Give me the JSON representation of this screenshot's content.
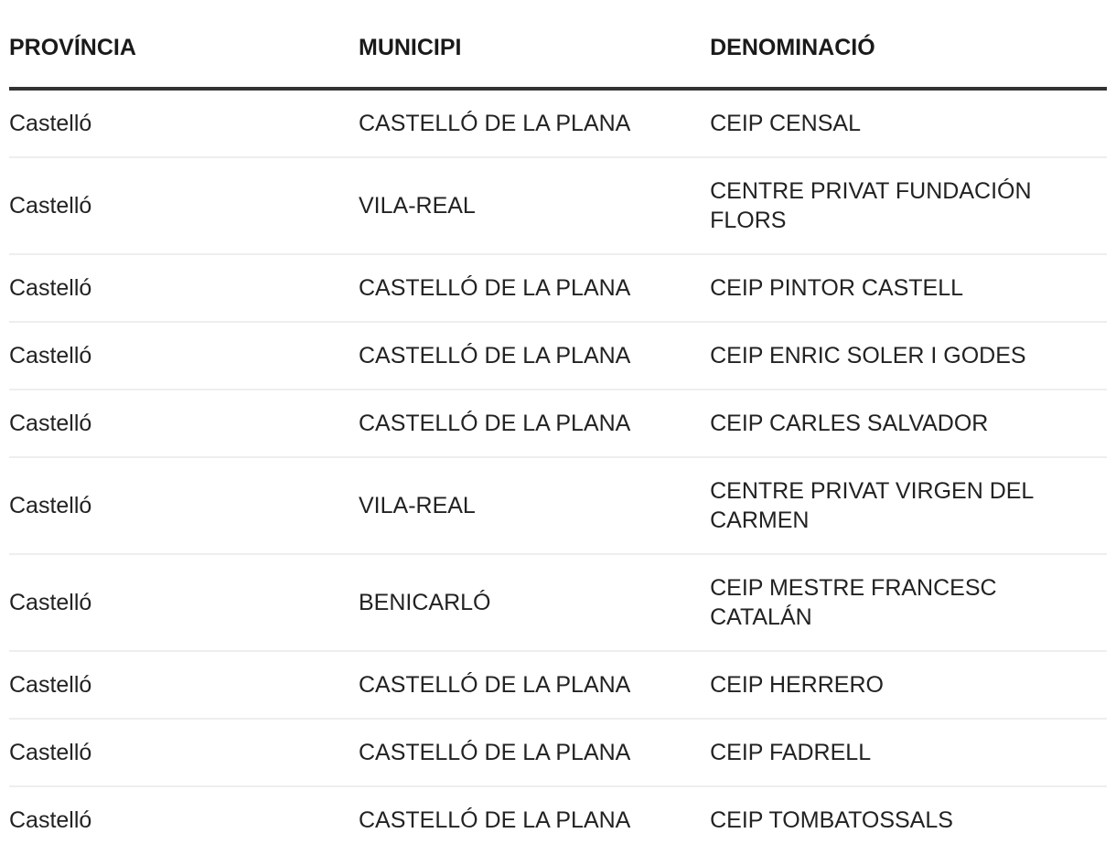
{
  "table": {
    "headers": [
      "PROVÍNCIA",
      "MUNICIPI",
      "DENOMINACIÓ"
    ],
    "rows": [
      [
        "Castelló",
        "CASTELLÓ DE LA PLANA",
        "CEIP CENSAL"
      ],
      [
        "Castelló",
        "VILA-REAL",
        "CENTRE PRIVAT FUNDACIÓN FLORS"
      ],
      [
        "Castelló",
        "CASTELLÓ DE LA PLANA",
        "CEIP PINTOR CASTELL"
      ],
      [
        "Castelló",
        "CASTELLÓ DE LA PLANA",
        "CEIP ENRIC SOLER I GODES"
      ],
      [
        "Castelló",
        "CASTELLÓ DE LA PLANA",
        "CEIP CARLES SALVADOR"
      ],
      [
        "Castelló",
        "VILA-REAL",
        "CENTRE PRIVAT VIRGEN DEL CARMEN"
      ],
      [
        "Castelló",
        "BENICARLÓ",
        "CEIP MESTRE FRANCESC CATALÁN"
      ],
      [
        "Castelló",
        "CASTELLÓ DE LA PLANA",
        "CEIP HERRERO"
      ],
      [
        "Castelló",
        "CASTELLÓ DE LA PLANA",
        "CEIP FADRELL"
      ],
      [
        "Castelló",
        "CASTELLÓ DE LA PLANA",
        "CEIP TOMBATOSSALS"
      ]
    ]
  }
}
